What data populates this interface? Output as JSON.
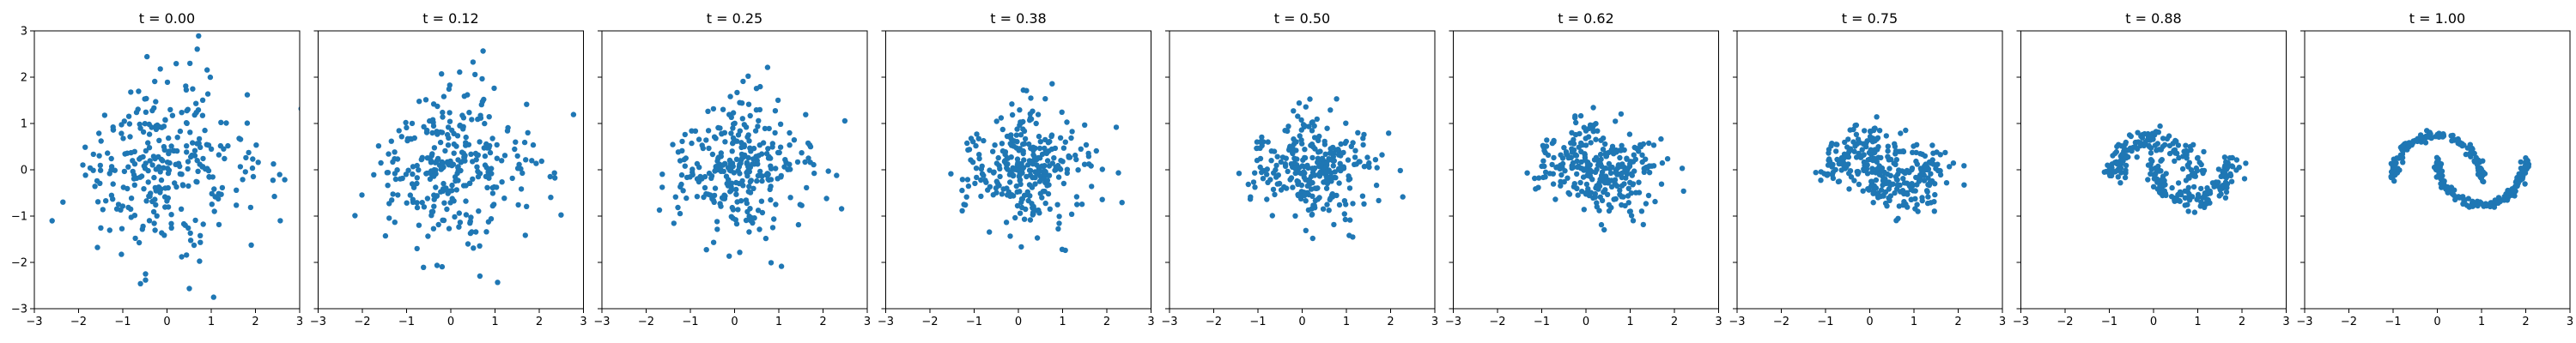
{
  "chart_data": {
    "type": "scatter",
    "marker_color": "#1f77b4",
    "background": "#ffffff",
    "xlim": [
      -3,
      3
    ],
    "ylim": [
      -3,
      3
    ],
    "xticks": [
      -3,
      -2,
      -1,
      0,
      1,
      2,
      3
    ],
    "yticks": [
      -3,
      -2,
      -1,
      0,
      1,
      2,
      3
    ],
    "ytick_labels_shown_on_first_panel_only": true,
    "points_per_panel": 300,
    "grid": false,
    "panels": [
      {
        "title": "t = 0.00",
        "t": 0.0
      },
      {
        "title": "t = 0.12",
        "t": 0.12
      },
      {
        "title": "t = 0.25",
        "t": 0.25
      },
      {
        "title": "t = 0.38",
        "t": 0.38
      },
      {
        "title": "t = 0.50",
        "t": 0.5
      },
      {
        "title": "t = 0.62",
        "t": 0.62
      },
      {
        "title": "t = 0.75",
        "t": 0.75
      },
      {
        "title": "t = 0.88",
        "t": 0.88
      },
      {
        "title": "t = 1.00",
        "t": 1.0
      }
    ]
  }
}
